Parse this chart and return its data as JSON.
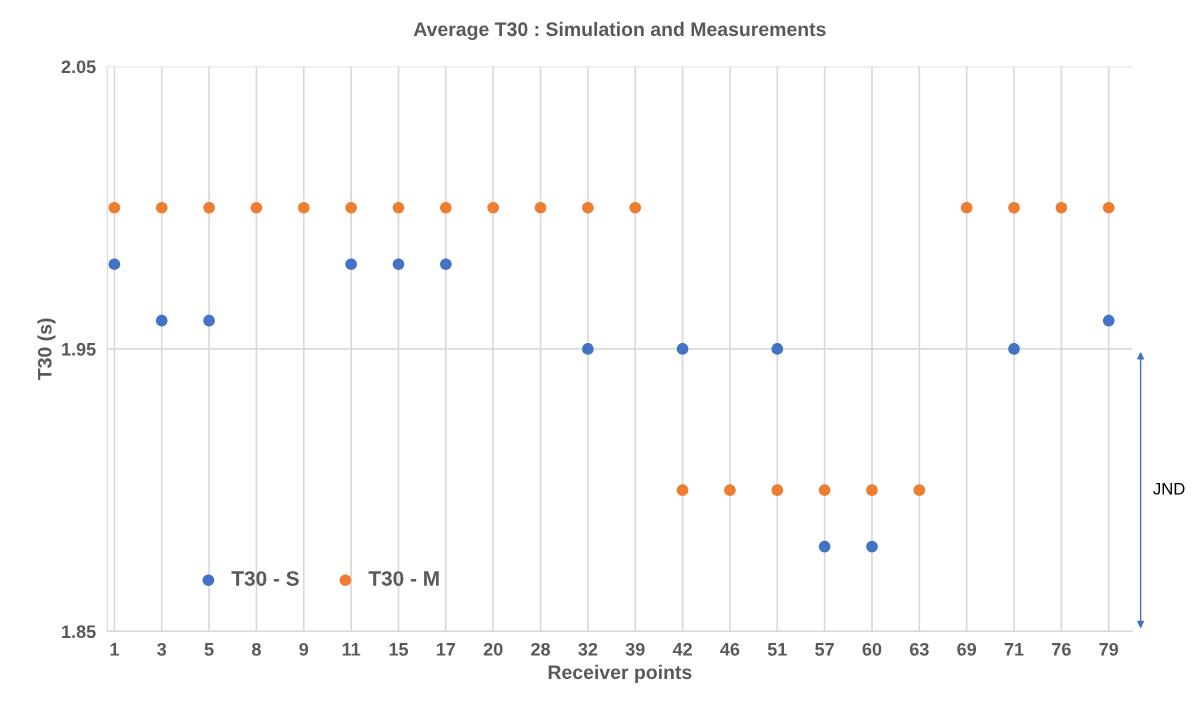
{
  "chart_data": {
    "type": "scatter",
    "title": "Average T30 : Simulation and Measurements",
    "xlabel": "Receiver points",
    "ylabel": "T30 (s)",
    "categories": [
      "1",
      "3",
      "5",
      "8",
      "9",
      "11",
      "15",
      "17",
      "20",
      "28",
      "32",
      "39",
      "42",
      "46",
      "51",
      "57",
      "60",
      "63",
      "69",
      "71",
      "76",
      "79"
    ],
    "series": [
      {
        "name": "T30 - S",
        "color": "#4472c4",
        "values": [
          1.98,
          1.96,
          1.96,
          null,
          null,
          1.98,
          1.98,
          1.98,
          null,
          null,
          1.95,
          null,
          1.95,
          null,
          1.95,
          1.88,
          1.88,
          null,
          null,
          1.95,
          null,
          1.96
        ]
      },
      {
        "name": "T30 - M",
        "color": "#ed7d31",
        "values": [
          2.0,
          2.0,
          2.0,
          2.0,
          2.0,
          2.0,
          2.0,
          2.0,
          2.0,
          2.0,
          2.0,
          2.0,
          1.9,
          1.9,
          1.9,
          1.9,
          1.9,
          1.9,
          2.0,
          2.0,
          2.0,
          2.0
        ]
      }
    ],
    "ylim": [
      1.85,
      2.05
    ],
    "yticks": [
      1.85,
      1.95,
      2.05
    ],
    "grid": true,
    "legend": "bottom left",
    "marker": "circle",
    "annotations": [
      "JND"
    ]
  }
}
